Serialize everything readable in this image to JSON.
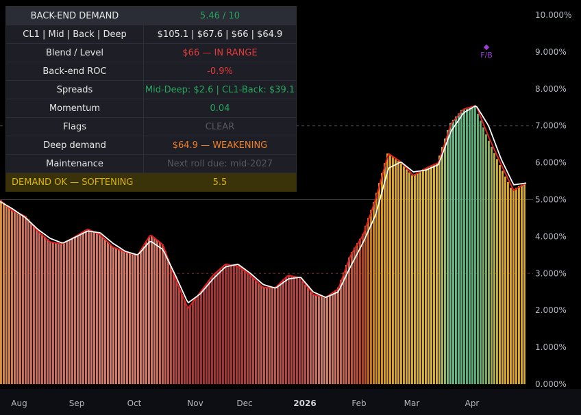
{
  "panel": {
    "rows": [
      {
        "label": "BACK-END DEMAND",
        "value": "5.46 / 10",
        "color": "#26a65b"
      },
      {
        "label": "CL1 | Mid | Back | Deep",
        "value": "$105.1 | $67.6 | $66 | $64.9",
        "color": "#e8e8e8"
      },
      {
        "label": "Blend / Level",
        "value": "$66 — IN RANGE",
        "color": "#e33a3a"
      },
      {
        "label": "Back-end ROC",
        "value": "-0.9%",
        "color": "#e33a3a"
      },
      {
        "label": "Spreads",
        "value": "Mid-Deep: $2.6 | CL1-Back: $39.1",
        "color": "#26a65b"
      },
      {
        "label": "Momentum",
        "value": "0.04",
        "color": "#26a65b"
      },
      {
        "label": "Flags",
        "value": "CLEAR",
        "color": "#555861"
      },
      {
        "label": "Deep demand",
        "value": "$64.9 — WEAKENING",
        "color": "#f07f2a"
      },
      {
        "label": "Maintenance",
        "value": "Next roll due: mid-2027",
        "color": "#555861"
      }
    ],
    "footer": {
      "label": "DEMAND OK — SOFTENING",
      "value": "5.5",
      "color": "#d9b414"
    }
  },
  "marker": {
    "symbol": "◆",
    "label": "F/B",
    "color": "#9a3fd4"
  },
  "chart_data": {
    "type": "bar",
    "title": "",
    "xlabel": "",
    "ylabel": "",
    "ylim": [
      0,
      10
    ],
    "yticks": [
      "0.000%",
      "1.000%",
      "2.000%",
      "3.000%",
      "4.000%",
      "5.000%",
      "6.000%",
      "7.000%",
      "8.000%",
      "9.000%",
      "10.000%"
    ],
    "xticks": [
      "Aug",
      "Sep",
      "Oct",
      "Nov",
      "Dec",
      "2026",
      "Feb",
      "Mar",
      "Apr"
    ],
    "reference_lines": [
      7,
      5,
      3
    ],
    "series": [
      {
        "type": "bar",
        "values": [
          4.98,
          4.7,
          4.55,
          4.15,
          3.85,
          3.8,
          4.0,
          4.2,
          4.05,
          3.72,
          3.58,
          3.5,
          4.05,
          3.78,
          2.85,
          2.05,
          2.5,
          2.95,
          3.25,
          3.2,
          2.95,
          2.62,
          2.62,
          2.95,
          2.88,
          2.43,
          2.35,
          2.58,
          3.5,
          4.05,
          5.03,
          6.25,
          6.02,
          5.65,
          5.85,
          6.0,
          7.05,
          7.45,
          7.55,
          6.7,
          5.95,
          5.25,
          5.45
        ],
        "colors": [
          "#df9138",
          "#d57c52",
          "#d0705c",
          "#cd6c5a",
          "#cc6c60",
          "#d07461",
          "#d17562",
          "#d27464",
          "#d77a66",
          "#db7e68",
          "#d97c67",
          "#d87a65",
          "#d77a65",
          "#cd6654",
          "#b74842",
          "#ad3d3d",
          "#a83638",
          "#a83638",
          "#a83638",
          "#ab3a3a",
          "#b24542",
          "#c25d52",
          "#c05a50",
          "#b24543",
          "#b14442",
          "#c6675b",
          "#d5826e",
          "#cf6f58",
          "#c45e44",
          "#b9421e",
          "#d2920d",
          "#e0a418",
          "#daa62a",
          "#dab02c",
          "#dbb42e",
          "#dcb531",
          "#6bc08a",
          "#5ab67e",
          "#55b07a",
          "#82ad5e",
          "#d7b028",
          "#dfa414",
          "#d7ac28"
        ]
      },
      {
        "type": "line",
        "color": "#e02020",
        "values": [
          4.98,
          4.7,
          4.55,
          4.15,
          3.85,
          3.8,
          4.0,
          4.2,
          4.05,
          3.72,
          3.58,
          3.5,
          4.05,
          3.78,
          2.85,
          2.05,
          2.5,
          2.95,
          3.25,
          3.2,
          2.95,
          2.62,
          2.62,
          2.95,
          2.88,
          2.43,
          2.35,
          2.58,
          3.5,
          4.05,
          5.03,
          6.25,
          6.02,
          5.65,
          5.85,
          6.0,
          7.05,
          7.45,
          7.55,
          6.7,
          5.95,
          5.25,
          5.45
        ]
      },
      {
        "type": "line",
        "color": "#ffffff",
        "values": [
          4.95,
          4.75,
          4.52,
          4.2,
          3.95,
          3.82,
          3.98,
          4.15,
          4.1,
          3.82,
          3.6,
          3.5,
          3.88,
          3.65,
          2.95,
          2.2,
          2.45,
          2.85,
          3.18,
          3.25,
          3.0,
          2.7,
          2.6,
          2.85,
          2.9,
          2.5,
          2.35,
          2.5,
          3.2,
          3.85,
          4.6,
          5.85,
          6.02,
          5.75,
          5.8,
          5.95,
          6.85,
          7.35,
          7.55,
          7.0,
          6.1,
          5.4,
          5.45
        ]
      }
    ]
  }
}
